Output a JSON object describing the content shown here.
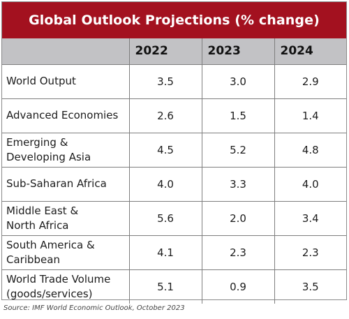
{
  "chart_data": {
    "type": "table",
    "title": "Global Outlook Projections (% change)",
    "columns": [
      "",
      "2022",
      "2023",
      "2024"
    ],
    "rows": [
      {
        "label": [
          "World Output"
        ],
        "values": [
          "3.5",
          "3.0",
          "2.9"
        ]
      },
      {
        "label": [
          "Advanced Economies"
        ],
        "values": [
          "2.6",
          "1.5",
          "1.4"
        ]
      },
      {
        "label": [
          "Emerging &",
          "Developing Asia"
        ],
        "values": [
          "4.5",
          "5.2",
          "4.8"
        ]
      },
      {
        "label": [
          "Sub-Saharan Africa"
        ],
        "values": [
          "4.0",
          "3.3",
          "4.0"
        ]
      },
      {
        "label": [
          "Middle East &",
          "North Africa"
        ],
        "values": [
          "5.6",
          "2.0",
          "3.4"
        ]
      },
      {
        "label": [
          "South America &",
          "Caribbean"
        ],
        "values": [
          "4.1",
          "2.3",
          "2.3"
        ]
      },
      {
        "label": [
          "World Trade Volume",
          "(goods/services)"
        ],
        "values": [
          "5.1",
          "0.9",
          "3.5"
        ]
      }
    ],
    "source": "Source: IMF World Economic Outlook, October 2023"
  },
  "colors": {
    "title_background": "#a3111f",
    "header_background": "#c2c2c5",
    "border": "#7e7e7e"
  }
}
